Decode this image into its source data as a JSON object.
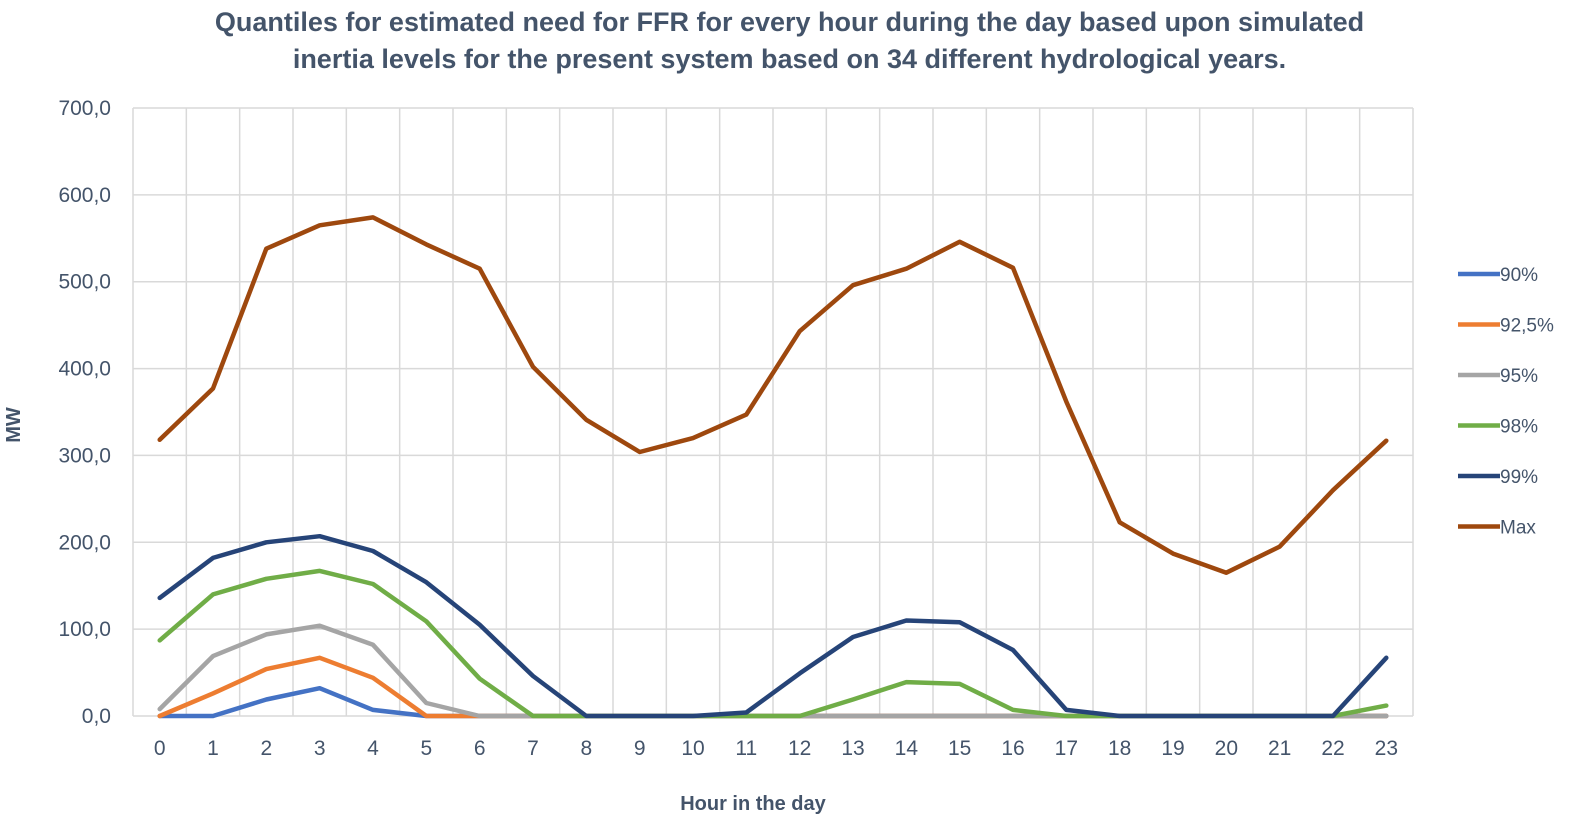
{
  "chart_data": {
    "type": "line",
    "title_lines": [
      "Quantiles for estimated need for FFR for every hour during the day based upon simulated",
      "inertia levels for the present system based on 34 different hydrological years."
    ],
    "xlabel": "Hour in the day",
    "ylabel": "MW",
    "x": [
      0,
      1,
      2,
      3,
      4,
      5,
      6,
      7,
      8,
      9,
      10,
      11,
      12,
      13,
      14,
      15,
      16,
      17,
      18,
      19,
      20,
      21,
      22,
      23
    ],
    "ylim": [
      0,
      700
    ],
    "yticks": [
      0,
      100,
      200,
      300,
      400,
      500,
      600,
      700
    ],
    "ytick_labels": [
      "0,0",
      "100,0",
      "200,0",
      "300,0",
      "400,0",
      "500,0",
      "600,0",
      "700,0"
    ],
    "grid": true,
    "legend_position": "right",
    "series": [
      {
        "name": "90%",
        "color": "#4472c4",
        "values": [
          0,
          0,
          19,
          32,
          7,
          0,
          0,
          0,
          0,
          0,
          0,
          0,
          0,
          0,
          0,
          0,
          0,
          0,
          0,
          0,
          0,
          0,
          0,
          0
        ]
      },
      {
        "name": "92,5%",
        "color": "#ed7d31",
        "values": [
          0,
          26,
          54,
          67,
          44,
          0,
          0,
          0,
          0,
          0,
          0,
          0,
          0,
          0,
          0,
          0,
          0,
          0,
          0,
          0,
          0,
          0,
          0,
          0
        ]
      },
      {
        "name": "95%",
        "color": "#a5a5a5",
        "values": [
          8,
          69,
          94,
          104,
          82,
          15,
          0,
          0,
          0,
          0,
          0,
          0,
          0,
          0,
          0,
          0,
          0,
          0,
          0,
          0,
          0,
          0,
          0,
          0
        ]
      },
      {
        "name": "98%",
        "color": "#70ad47",
        "values": [
          87,
          140,
          158,
          167,
          152,
          109,
          43,
          0,
          0,
          0,
          0,
          0,
          0,
          19,
          39,
          37,
          7,
          0,
          0,
          0,
          0,
          0,
          0,
          12
        ]
      },
      {
        "name": "99%",
        "color": "#264478",
        "values": [
          136,
          182,
          200,
          207,
          190,
          154,
          105,
          46,
          0,
          0,
          0,
          4,
          49,
          91,
          110,
          108,
          76,
          7,
          0,
          0,
          0,
          0,
          0,
          67
        ]
      },
      {
        "name": "Max",
        "color": "#9e480e",
        "values": [
          318,
          377,
          538,
          565,
          574,
          543,
          515,
          402,
          341,
          304,
          320,
          347,
          443,
          496,
          515,
          546,
          516,
          362,
          223,
          187,
          165,
          195,
          260,
          317
        ]
      }
    ]
  }
}
